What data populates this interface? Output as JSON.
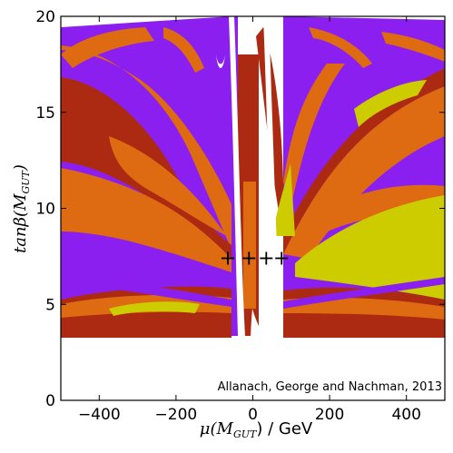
{
  "chart_data": {
    "type": "scatter",
    "xlabel": "μ(M_GUT) / GeV",
    "xlabel_main": "μ(M",
    "xlabel_sub": "GUT",
    "xlabel_tail": ") / GeV",
    "ylabel": "tanβ(M_GUT)",
    "ylabel_main": "tanβ(M",
    "ylabel_sub": "GUT",
    "ylabel_tail": ")",
    "xlim": [
      -500,
      500
    ],
    "ylim": [
      0,
      20
    ],
    "x_ticks": [
      -400,
      -200,
      0,
      200,
      400
    ],
    "x_tick_labels": [
      "−400",
      "−200",
      "0",
      "200",
      "400"
    ],
    "y_ticks": [
      0,
      5,
      10,
      15,
      20
    ],
    "y_tick_labels": [
      "0",
      "5",
      "10",
      "15",
      "20"
    ],
    "grid": false,
    "annotation": "Allanach, George and Nachman, 2013",
    "region_colors": {
      "purple": "#8b1ff0",
      "orange": "#de6a12",
      "darkred": "#ad2a12",
      "yellow": "#cccc00",
      "white": "#ffffff"
    },
    "markers": {
      "symbol": "+",
      "color": "#000000",
      "points": [
        {
          "x": -65,
          "y": 7.4
        },
        {
          "x": -10,
          "y": 7.4
        },
        {
          "x": 35,
          "y": 7.4
        },
        {
          "x": 75,
          "y": 7.4
        }
      ]
    }
  }
}
